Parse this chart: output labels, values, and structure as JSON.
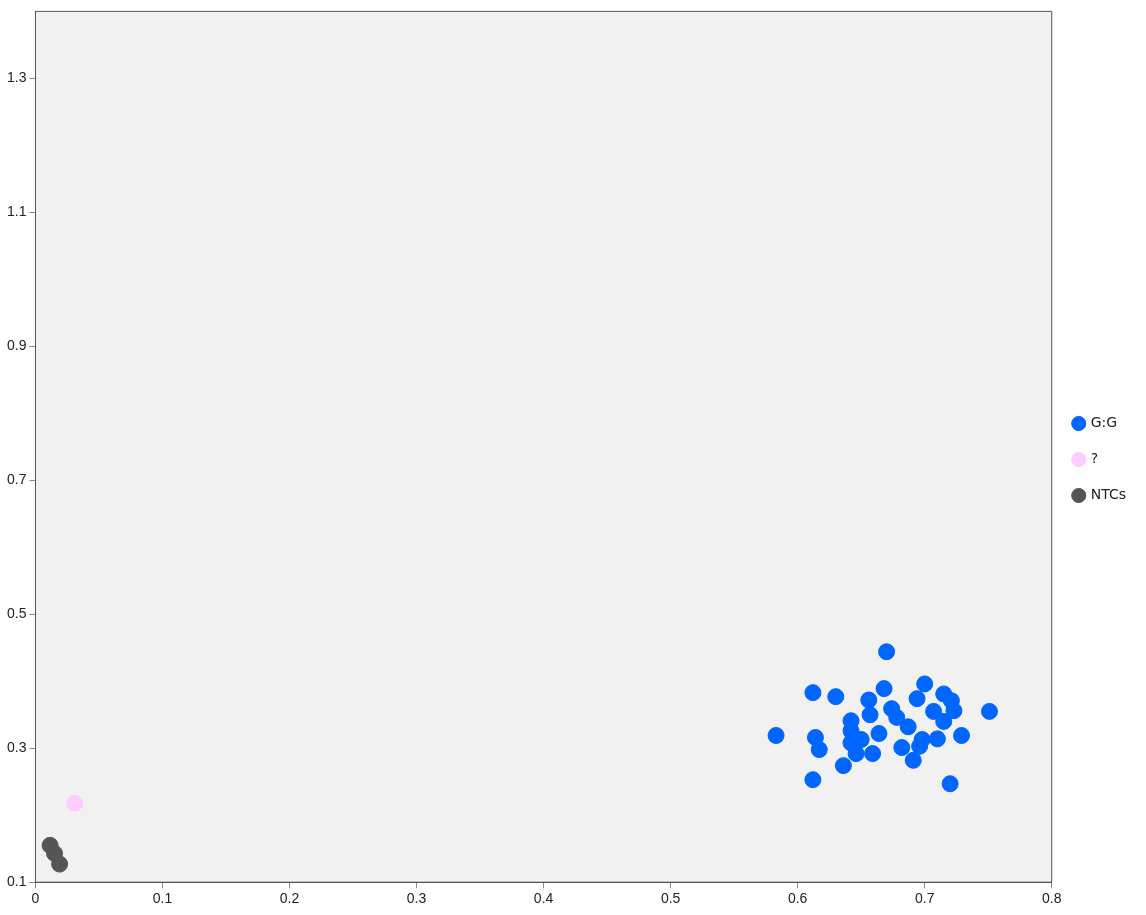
{
  "chart_data": {
    "type": "scatter",
    "legend": "right",
    "marker": "circle",
    "grid": false,
    "xlim": [
      0,
      0.8
    ],
    "xticks": [
      0,
      0.1,
      0.2,
      0.3,
      0.4,
      0.5,
      0.6,
      0.7,
      0.8
    ],
    "ylim": [
      0.1,
      1.4
    ],
    "yticks": [
      0.1,
      0.3,
      0.5,
      0.7,
      0.9,
      1.1,
      1.3
    ],
    "series": [
      {
        "name": "G:G",
        "color": "#0066ff",
        "x": [
          0.583,
          0.612,
          0.612,
          0.614,
          0.617,
          0.63,
          0.636,
          0.642,
          0.642,
          0.642,
          0.646,
          0.65,
          0.656,
          0.657,
          null,
          0.659,
          0.664,
          0.668,
          0.67,
          0.674,
          0.678,
          null,
          null,
          0.682,
          0.687,
          0.691,
          0.694,
          0.696,
          0.698,
          0.7,
          0.707,
          0.71,
          0.715,
          0.715,
          0.721,
          0.72,
          0.723,
          0.729,
          0.751
        ],
        "values": [
          0.319,
          0.383,
          0.253,
          0.316,
          0.298,
          0.377,
          0.274,
          0.341,
          0.326,
          0.308,
          0.292,
          0.313,
          0.372,
          0.35,
          null,
          0.292,
          0.322,
          0.389,
          0.444,
          0.359,
          0.346,
          null,
          null,
          0.301,
          0.332,
          0.282,
          0.374,
          0.303,
          0.313,
          0.396,
          0.355,
          0.314,
          0.34,
          0.381,
          0.371,
          0.247,
          0.356,
          0.319,
          0.355
        ]
      },
      {
        "name": "?",
        "color": "#ffccff",
        "x": [
          0.031
        ],
        "values": [
          0.218
        ]
      },
      {
        "name": "NTCs",
        "color": "#555555",
        "x": [
          0.0115,
          0.015,
          0.019
        ],
        "values": [
          0.155,
          0.143,
          0.127
        ]
      }
    ]
  }
}
